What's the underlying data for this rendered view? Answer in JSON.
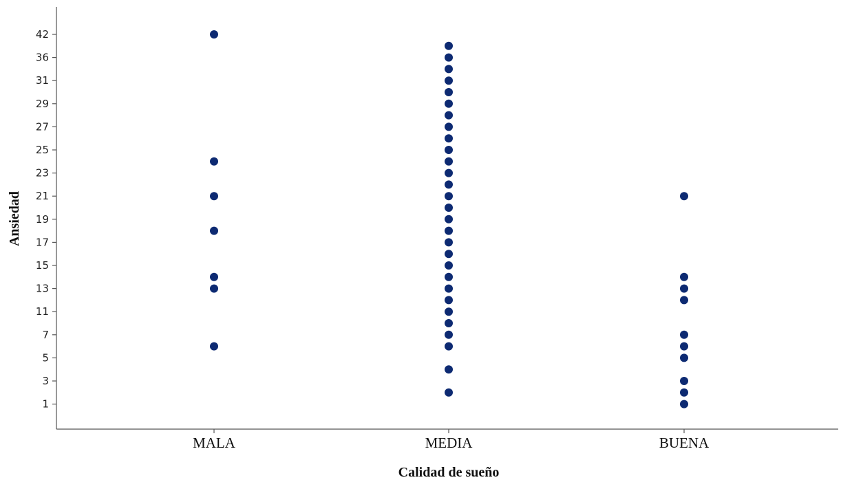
{
  "chart_data": {
    "type": "scatter",
    "title": "",
    "xlabel": "Calidad de sueño",
    "ylabel": "Ansiedad",
    "categories": [
      "MALA",
      "MEDIA",
      "BUENA"
    ],
    "y_ticks": [
      "1",
      "3",
      "5",
      "7",
      "11",
      "13",
      "15",
      "17",
      "19",
      "21",
      "23",
      "25",
      "27",
      "29",
      "31",
      "36",
      "42"
    ],
    "grid": false,
    "legend": "none",
    "marker_color": "#0d2a72",
    "points": [
      {
        "category": "MALA",
        "values": [
          "42",
          "24",
          "21",
          "18",
          "14",
          "13",
          "6"
        ]
      },
      {
        "category": "MEDIA",
        "values": [
          "38",
          "36",
          "34",
          "31",
          "30",
          "29",
          "28",
          "27",
          "26",
          "25",
          "24",
          "23",
          "22",
          "21",
          "20",
          "19",
          "18",
          "17",
          "16",
          "15",
          "14",
          "13",
          "12",
          "11",
          "8",
          "7",
          "6",
          "4",
          "2"
        ]
      },
      {
        "category": "BUENA",
        "values": [
          "21",
          "14",
          "13",
          "12",
          "7",
          "6",
          "5",
          "3",
          "2",
          "1"
        ]
      }
    ]
  }
}
